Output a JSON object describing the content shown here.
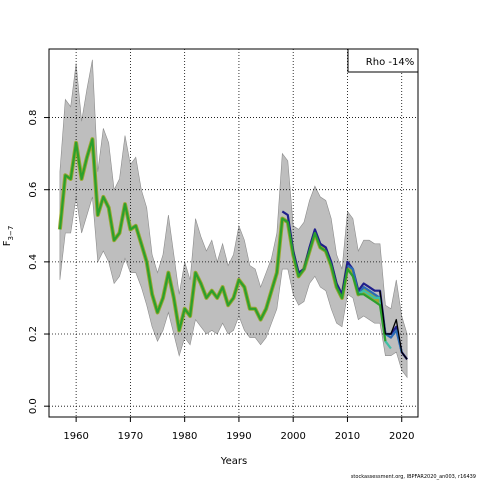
{
  "chart_data": {
    "type": "line",
    "xlabel": "Years",
    "ylabel_main": "F",
    "ylabel_sub": "3−7",
    "xlim": [
      1955,
      2023
    ],
    "ylim": [
      -0.03,
      0.99
    ],
    "xticks": [
      1960,
      1970,
      1980,
      1990,
      2000,
      2010,
      2020
    ],
    "yticks": [
      0.0,
      0.2,
      0.4,
      0.6,
      0.8
    ],
    "ytick_labels": [
      "0.0",
      "0.2",
      "0.4",
      "0.6",
      "0.8"
    ],
    "grid": true,
    "legend": {
      "text": "Rho -14%",
      "placement": "top-right"
    },
    "footer": "stockassessment.org, IBPFAR2020_an003, r16439",
    "band": {
      "x": [
        1957,
        1958,
        1959,
        1960,
        1961,
        1962,
        1963,
        1964,
        1965,
        1966,
        1967,
        1968,
        1969,
        1970,
        1971,
        1972,
        1973,
        1974,
        1975,
        1976,
        1977,
        1978,
        1979,
        1980,
        1981,
        1982,
        1983,
        1984,
        1985,
        1986,
        1987,
        1988,
        1989,
        1990,
        1991,
        1992,
        1993,
        1994,
        1995,
        1996,
        1997,
        1998,
        1999,
        2000,
        2001,
        2002,
        2003,
        2004,
        2005,
        2006,
        2007,
        2008,
        2009,
        2010,
        2011,
        2012,
        2013,
        2014,
        2015,
        2016,
        2017,
        2018,
        2019,
        2020,
        2021
      ],
      "lower": [
        0.35,
        0.48,
        0.48,
        0.58,
        0.48,
        0.53,
        0.58,
        0.4,
        0.43,
        0.4,
        0.34,
        0.36,
        0.41,
        0.37,
        0.37,
        0.33,
        0.28,
        0.22,
        0.18,
        0.21,
        0.26,
        0.2,
        0.14,
        0.19,
        0.17,
        0.24,
        0.22,
        0.2,
        0.21,
        0.2,
        0.23,
        0.2,
        0.21,
        0.25,
        0.21,
        0.19,
        0.19,
        0.17,
        0.19,
        0.23,
        0.27,
        0.38,
        0.38,
        0.31,
        0.28,
        0.29,
        0.34,
        0.36,
        0.33,
        0.32,
        0.27,
        0.23,
        0.22,
        0.31,
        0.3,
        0.24,
        0.25,
        0.24,
        0.23,
        0.23,
        0.14,
        0.14,
        0.15,
        0.1,
        0.08
      ],
      "upper": [
        0.65,
        0.85,
        0.83,
        0.95,
        0.79,
        0.88,
        0.96,
        0.65,
        0.77,
        0.73,
        0.6,
        0.63,
        0.75,
        0.67,
        0.69,
        0.6,
        0.55,
        0.42,
        0.37,
        0.42,
        0.53,
        0.42,
        0.31,
        0.4,
        0.35,
        0.52,
        0.47,
        0.43,
        0.46,
        0.4,
        0.45,
        0.39,
        0.42,
        0.5,
        0.46,
        0.39,
        0.38,
        0.33,
        0.37,
        0.41,
        0.48,
        0.7,
        0.68,
        0.5,
        0.49,
        0.51,
        0.57,
        0.61,
        0.58,
        0.57,
        0.52,
        0.42,
        0.38,
        0.54,
        0.52,
        0.43,
        0.46,
        0.46,
        0.45,
        0.45,
        0.28,
        0.27,
        0.35,
        0.25,
        0.2
      ]
    },
    "series": [
      {
        "color": "#9aa832",
        "x": [
          1957,
          1958,
          1959,
          1960,
          1961,
          1962,
          1963,
          1964,
          1965,
          1966,
          1967,
          1968,
          1969,
          1970,
          1971,
          1972,
          1973,
          1974,
          1975,
          1976,
          1977,
          1978,
          1979,
          1980,
          1981,
          1982,
          1983,
          1984,
          1985,
          1986,
          1987,
          1988,
          1989,
          1990,
          1991,
          1992,
          1993,
          1994,
          1995,
          1996,
          1997,
          1998,
          1999,
          2000,
          2001,
          2002,
          2003,
          2004,
          2005,
          2006,
          2007,
          2008,
          2009,
          2010,
          2011,
          2012,
          2013,
          2014,
          2015,
          2016
        ],
        "values": [
          0.49,
          0.64,
          0.63,
          0.73,
          0.63,
          0.69,
          0.74,
          0.53,
          0.58,
          0.55,
          0.46,
          0.48,
          0.56,
          0.49,
          0.5,
          0.45,
          0.4,
          0.31,
          0.26,
          0.3,
          0.37,
          0.3,
          0.21,
          0.27,
          0.25,
          0.37,
          0.34,
          0.3,
          0.32,
          0.3,
          0.33,
          0.28,
          0.3,
          0.35,
          0.33,
          0.27,
          0.27,
          0.24,
          0.27,
          0.32,
          0.37,
          0.52,
          0.51,
          0.42,
          0.36,
          0.38,
          0.43,
          0.48,
          0.44,
          0.43,
          0.39,
          0.33,
          0.3,
          0.39,
          0.37,
          0.31,
          0.32,
          0.31,
          0.3,
          0.29
        ]
      },
      {
        "color": "#1f1f8c",
        "x": [
          1998,
          1999,
          2000,
          2001,
          2002,
          2003,
          2004,
          2005,
          2006,
          2007,
          2008,
          2009,
          2010,
          2011,
          2012,
          2013,
          2014,
          2015,
          2016,
          2017,
          2018,
          2019,
          2020,
          2021
        ],
        "values": [
          0.54,
          0.53,
          0.43,
          0.37,
          0.38,
          0.44,
          0.49,
          0.45,
          0.44,
          0.4,
          0.34,
          0.31,
          0.4,
          0.38,
          0.32,
          0.34,
          0.33,
          0.32,
          0.32,
          0.2,
          0.2,
          0.22,
          0.15,
          0.13
        ]
      },
      {
        "color": "#2a6bb5",
        "x": [
          2010,
          2011,
          2012,
          2013,
          2014,
          2015,
          2016,
          2017,
          2018,
          2019,
          2020
        ],
        "values": [
          0.39,
          0.38,
          0.31,
          0.33,
          0.32,
          0.31,
          0.3,
          0.2,
          0.19,
          0.21,
          0.15
        ]
      },
      {
        "color": "#3fbfa5",
        "x": [
          2012,
          2013,
          2014,
          2015,
          2016,
          2017,
          2018
        ],
        "values": [
          0.31,
          0.32,
          0.31,
          0.3,
          0.3,
          0.18,
          0.16
        ]
      },
      {
        "color": "#2ca02c",
        "x": [
          1957,
          1958,
          1959,
          1960,
          1961,
          1962,
          1963,
          1964,
          1965,
          1966,
          1967,
          1968,
          1969,
          1970,
          1971,
          1972,
          1973,
          1974,
          1975,
          1976,
          1977,
          1978,
          1979,
          1980,
          1981,
          1982,
          1983,
          1984,
          1985,
          1986,
          1987,
          1988,
          1989,
          1990,
          1991,
          1992,
          1993,
          1994,
          1995,
          1996,
          1997,
          1998,
          1999,
          2000,
          2001,
          2002,
          2003,
          2004,
          2005,
          2006,
          2007,
          2008,
          2009,
          2010,
          2011,
          2012,
          2013,
          2014,
          2015,
          2016,
          2017
        ],
        "values": [
          0.49,
          0.64,
          0.63,
          0.73,
          0.63,
          0.69,
          0.74,
          0.53,
          0.58,
          0.55,
          0.46,
          0.48,
          0.56,
          0.49,
          0.5,
          0.45,
          0.4,
          0.31,
          0.26,
          0.3,
          0.37,
          0.3,
          0.21,
          0.27,
          0.25,
          0.37,
          0.34,
          0.3,
          0.32,
          0.3,
          0.33,
          0.28,
          0.3,
          0.35,
          0.33,
          0.27,
          0.27,
          0.24,
          0.27,
          0.32,
          0.37,
          0.52,
          0.51,
          0.42,
          0.36,
          0.38,
          0.43,
          0.48,
          0.44,
          0.43,
          0.39,
          0.33,
          0.3,
          0.38,
          0.36,
          0.31,
          0.31,
          0.3,
          0.29,
          0.28,
          0.18
        ]
      },
      {
        "color": "#000000",
        "x": [
          2016,
          2017,
          2018,
          2019,
          2020,
          2021
        ],
        "values": [
          0.32,
          0.2,
          0.2,
          0.24,
          0.15,
          0.13
        ]
      }
    ]
  }
}
